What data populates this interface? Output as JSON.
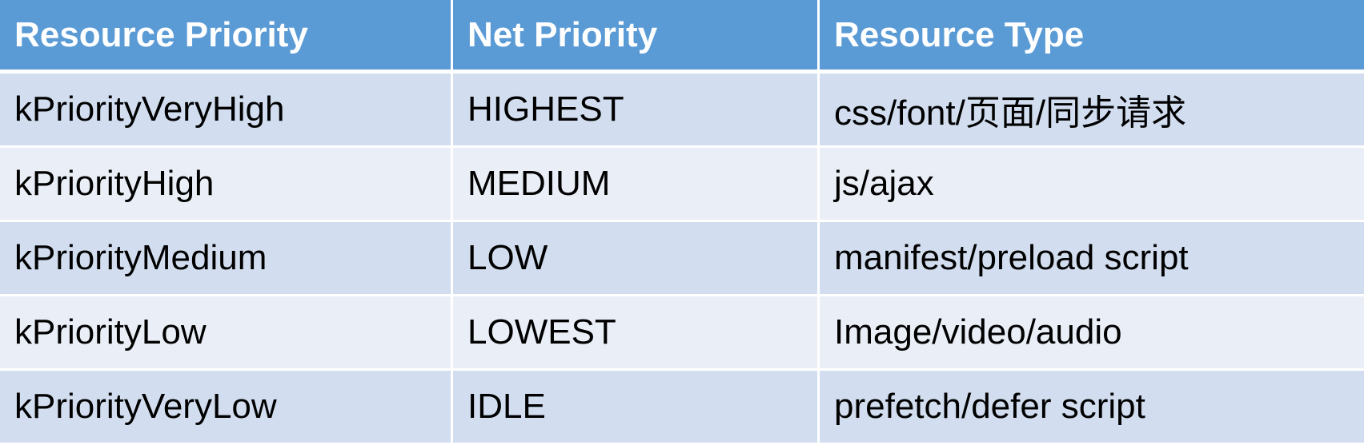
{
  "table": {
    "headers": [
      "Resource Priority",
      "Net Priority",
      "Resource Type"
    ],
    "rows": [
      [
        "kPriorityVeryHigh",
        "HIGHEST",
        "css/font/页面/同步请求"
      ],
      [
        "kPriorityHigh",
        "MEDIUM",
        "js/ajax"
      ],
      [
        "kPriorityMedium",
        "LOW",
        "manifest/preload script"
      ],
      [
        "kPriorityLow",
        "LOWEST",
        "Image/video/audio"
      ],
      [
        "kPriorityVeryLow",
        "IDLE",
        "prefetch/defer script"
      ]
    ]
  },
  "colors": {
    "header_bg": "#5b9bd5",
    "row_odd_bg": "#d2deef",
    "row_even_bg": "#eaeff7"
  }
}
